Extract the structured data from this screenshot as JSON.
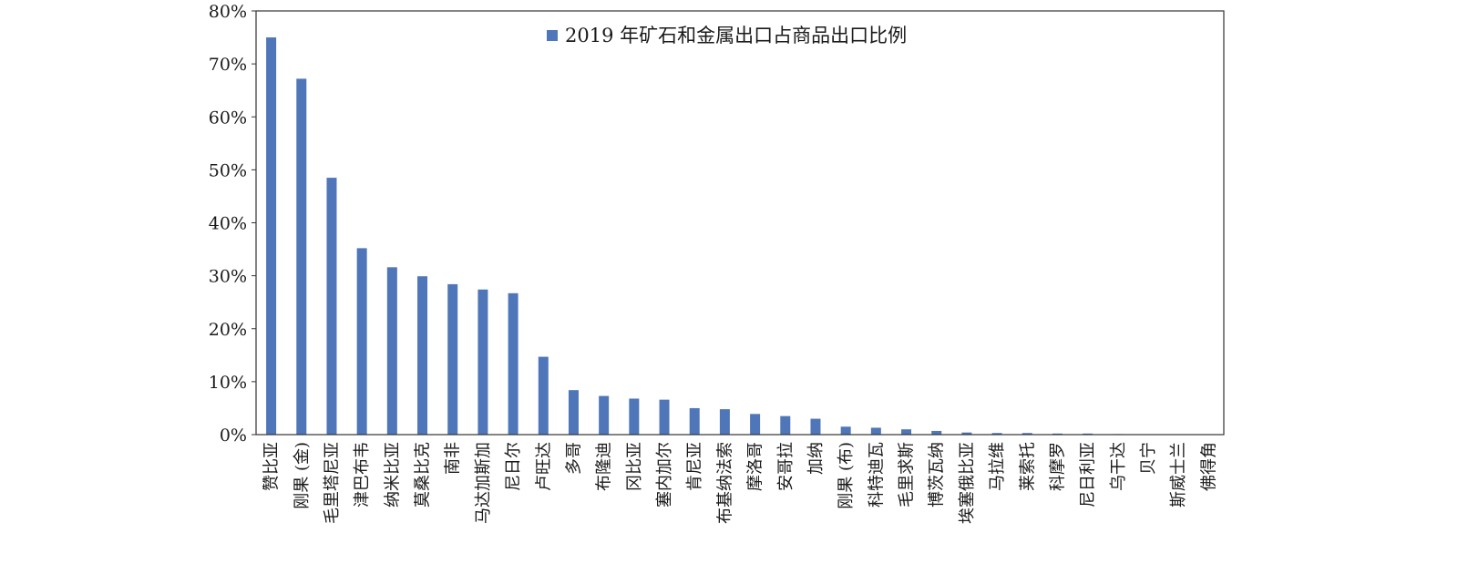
{
  "chart_data": {
    "type": "bar",
    "series": [
      {
        "name": "2019 年矿石和金属出口占商品出口比例",
        "color": "#4f76b8",
        "values": [
          75.0,
          67.2,
          48.5,
          35.2,
          31.6,
          29.9,
          28.4,
          27.4,
          26.7,
          14.7,
          8.4,
          7.3,
          6.8,
          6.6,
          5.0,
          4.8,
          3.9,
          3.5,
          3.0,
          1.5,
          1.3,
          1.0,
          0.7,
          0.4,
          0.3,
          0.3,
          0.2,
          0.2,
          0.1,
          0.05,
          0.05,
          0.02
        ]
      }
    ],
    "categories": [
      "赞比亚",
      "刚果 (金)",
      "毛里塔尼亚",
      "津巴布韦",
      "纳米比亚",
      "莫桑比克",
      "南非",
      "马达加斯加",
      "尼日尔",
      "卢旺达",
      "多哥",
      "布隆迪",
      "冈比亚",
      "塞内加尔",
      "肯尼亚",
      "布基纳法索",
      "摩洛哥",
      "安哥拉",
      "加纳",
      "刚果 (布)",
      "科特迪瓦",
      "毛里求斯",
      "博茨瓦纳",
      "埃塞俄比亚",
      "马拉维",
      "莱索托",
      "科摩罗",
      "尼日利亚",
      "乌干达",
      "贝宁",
      "斯威士兰",
      "佛得角"
    ],
    "yticks": [
      "0%",
      "10%",
      "20%",
      "30%",
      "40%",
      "50%",
      "60%",
      "70%",
      "80%"
    ],
    "ylim": [
      0,
      80
    ],
    "legend_position": "top",
    "grid": false
  }
}
